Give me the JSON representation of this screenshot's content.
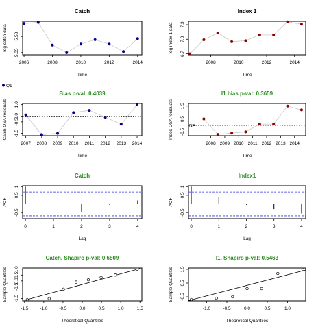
{
  "legend": {
    "label": "Q1"
  },
  "colors": {
    "obs": "#00008b",
    "idx": "#8b0000",
    "green": "#2e8b22",
    "ci": "#3333ee"
  },
  "chart_data": [
    {
      "id": "p1",
      "type": "line",
      "title": "Catch",
      "title_color": "black",
      "xlabel": "Time",
      "ylabel": "log catch data",
      "x": [
        2006,
        2007,
        2008,
        2009,
        2010,
        2011,
        2012,
        2013,
        2014
      ],
      "y": [
        5.62,
        5.63,
        5.42,
        5.35,
        5.43,
        5.47,
        5.43,
        5.36,
        5.48
      ],
      "point_color": "#00008b",
      "line": "solid",
      "xlim": [
        2005.9,
        2014.3
      ],
      "ylim": [
        5.33,
        5.64
      ],
      "xticks": [
        2006,
        2008,
        2010,
        2012,
        2014
      ],
      "yticks": [
        5.35,
        5.5
      ],
      "ytick_labels": [
        "5.35",
        "5.50"
      ]
    },
    {
      "id": "p2",
      "type": "line",
      "title": "Index 1",
      "title_color": "black",
      "xlabel": "Time",
      "ylabel": "log index 1 data",
      "x": [
        2006.5,
        2007.5,
        2008.5,
        2009.5,
        2010.5,
        2011.5,
        2012.5,
        2013.5,
        2014.5
      ],
      "y": [
        6.7,
        6.99,
        7.13,
        6.95,
        6.97,
        7.09,
        7.09,
        7.36,
        7.31
      ],
      "point_color": "#8b0000",
      "line": "solid",
      "xlim": [
        2006.4,
        2014.8
      ],
      "ylim": [
        6.68,
        7.37
      ],
      "xticks": [
        2008,
        2010,
        2012,
        2014
      ],
      "yticks": [
        6.7,
        7.0,
        7.3
      ],
      "ytick_labels": [
        "6.7",
        "7.0",
        "7.3"
      ]
    },
    {
      "id": "p3",
      "type": "line",
      "title": "Bias p-val: 0.4039",
      "title_color": "green",
      "xlabel": "Time",
      "ylabel": "Catch OSA residuals",
      "x": [
        2007,
        2008,
        2009,
        2010,
        2011,
        2012,
        2013,
        2014
      ],
      "y": [
        0.1,
        -1.6,
        -1.5,
        0.3,
        0.5,
        -0.1,
        -0.7,
        1.0
      ],
      "point_color": "#00008b",
      "line": "solid",
      "zero_line": true,
      "xlim": [
        2006.8,
        2014.3
      ],
      "ylim": [
        -1.7,
        1.1
      ],
      "xticks": [
        2007,
        2008,
        2009,
        2010,
        2011,
        2012,
        2013,
        2014
      ],
      "yticks": [
        -1.5,
        -0.5,
        0.0,
        1.0
      ],
      "ytick_labels": [
        "-1.5",
        "-0.5",
        "0.0",
        "1.0"
      ]
    },
    {
      "id": "p4",
      "type": "line",
      "title": "I1 bias p-val: 0.3659",
      "title_color": "green",
      "xlabel": "Time",
      "ylabel": "Index OSA residuals",
      "x": [
        2007.5,
        2008.5,
        2009.5,
        2010.5,
        2011.5,
        2012.5,
        2013.5,
        2014.5
      ],
      "y": [
        0.5,
        -0.7,
        -0.6,
        -0.5,
        0.1,
        0.1,
        1.5,
        1.2
      ],
      "point_color": "#8b0000",
      "line": "solid",
      "zero_line": true,
      "annotation": "NA",
      "xlim": [
        2006.4,
        2014.8
      ],
      "ylim": [
        -0.8,
        1.7
      ],
      "xticks": [
        2008,
        2009,
        2010,
        2011,
        2012,
        2013,
        2014
      ],
      "yticks": [
        -0.5,
        0.5,
        1.5
      ],
      "ytick_labels": [
        "-0.5",
        "0.5",
        "1.5"
      ]
    },
    {
      "id": "p5",
      "type": "bar",
      "title": "Catch",
      "title_color": "green",
      "xlabel": "Lag",
      "ylabel": "ACF",
      "x": [
        0,
        1,
        2,
        3,
        4
      ],
      "y": [
        1.0,
        -0.02,
        -0.45,
        -0.05,
        0.2
      ],
      "ci": 0.69,
      "xlim": [
        -0.1,
        4.15
      ],
      "ylim": [
        -0.85,
        1.05
      ],
      "xticks": [
        0,
        1,
        2,
        3,
        4
      ],
      "yticks": [
        -0.5,
        0.5,
        1.0
      ],
      "ytick_labels": [
        "-0.5",
        "0.5",
        "1"
      ]
    },
    {
      "id": "p6",
      "type": "bar",
      "title": "Index1",
      "title_color": "green",
      "xlabel": "Lag",
      "ylabel": "ACF",
      "x": [
        0,
        1,
        2,
        3,
        4
      ],
      "y": [
        1.0,
        0.4,
        -0.05,
        -0.3,
        -0.55
      ],
      "ci": 0.69,
      "xlim": [
        -0.1,
        4.15
      ],
      "ylim": [
        -0.85,
        1.05
      ],
      "xticks": [
        0,
        1,
        2,
        3,
        4
      ],
      "yticks": [
        -0.5,
        0.5,
        1.0
      ],
      "ytick_labels": [
        "-0.5",
        "0.5",
        "1"
      ]
    },
    {
      "id": "p7",
      "type": "scatter",
      "title": "Catch, Shapiro p-val: 0.6809",
      "title_color": "green",
      "xlabel": "Theoretical Quantiles",
      "ylabel": "Sample Quantiles",
      "x": [
        -1.43,
        -0.86,
        -0.49,
        -0.16,
        0.16,
        0.49,
        0.86,
        1.43
      ],
      "y": [
        -1.6,
        -1.5,
        -0.7,
        -0.1,
        0.1,
        0.3,
        0.5,
        1.0
      ],
      "qq_line": [
        [
          -1.5,
          -1.65
        ],
        [
          1.5,
          1.05
        ]
      ],
      "xlim": [
        -1.55,
        1.55
      ],
      "ylim": [
        -1.7,
        1.1
      ],
      "xticks": [
        -1.5,
        -1.0,
        -0.5,
        0.0,
        0.5,
        1.0,
        1.5
      ],
      "xtick_labels": [
        "-1.5",
        "-1.0",
        "-0.5",
        "0.0",
        "0.5",
        "1.0",
        "1.5"
      ],
      "yticks": [
        -1.5,
        -0.5,
        0.0,
        0.5,
        1.0
      ],
      "ytick_labels": [
        "-1.5",
        "-0.5",
        "0.0",
        "0.5",
        "1.0"
      ]
    },
    {
      "id": "p8",
      "type": "scatter",
      "title": "I1, Shapiro p-val: 0.5463",
      "title_color": "green",
      "xlabel": "Theoretical Quantiles",
      "ylabel": "Sample Quantiles",
      "x": [
        -1.38,
        -0.76,
        -0.36,
        0.0,
        0.36,
        0.76,
        1.38
      ],
      "y": [
        -0.7,
        -0.6,
        -0.5,
        0.1,
        0.1,
        1.2,
        1.5
      ],
      "qq_line": [
        [
          -1.45,
          -0.78
        ],
        [
          1.45,
          1.45
        ]
      ],
      "xlim": [
        -1.45,
        1.45
      ],
      "ylim": [
        -0.8,
        1.6
      ],
      "xticks": [
        -1.0,
        -0.5,
        0.0,
        0.5,
        1.0
      ],
      "xtick_labels": [
        "-1.0",
        "-0.5",
        "0.0",
        "0.5",
        "1.0"
      ],
      "yticks": [
        -0.5,
        0.5,
        1.5
      ],
      "ytick_labels": [
        "-0.5",
        "0.5",
        "1.5"
      ]
    }
  ]
}
